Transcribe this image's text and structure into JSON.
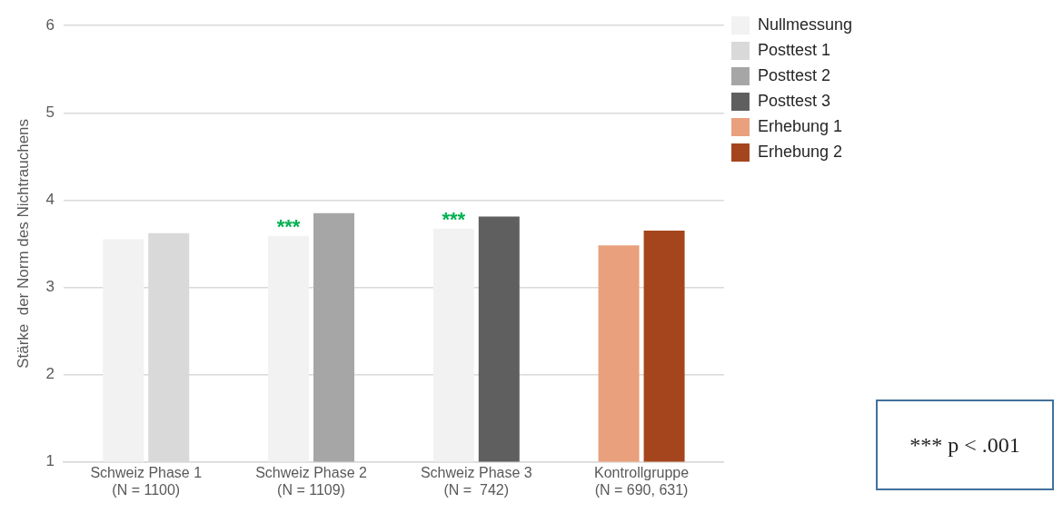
{
  "chart_data": {
    "type": "bar",
    "ylabel": "Stärke  der Norm des Nichtrauchens",
    "categories": [
      "Schweiz Phase 1\n(N = 1100)",
      "Schweiz Phase 2\n(N = 1109)",
      "Schweiz Phase 3\n(N =  742)",
      "Kontrollgruppe\n(N = 690, 631)"
    ],
    "series": [
      {
        "name": "Nullmessung",
        "color": "#f2f2f2",
        "values": [
          3.55,
          3.59,
          3.67,
          null
        ]
      },
      {
        "name": "Posttest 1",
        "color": "#d9d9d9",
        "values": [
          3.62,
          null,
          null,
          null
        ]
      },
      {
        "name": "Posttest 2",
        "color": "#a6a6a6",
        "values": [
          null,
          3.85,
          null,
          null
        ]
      },
      {
        "name": "Posttest 3",
        "color": "#5f5f5f",
        "values": [
          null,
          null,
          3.81,
          null
        ]
      },
      {
        "name": "Erhebung 1",
        "color": "#e9a07c",
        "values": [
          null,
          null,
          null,
          3.48
        ]
      },
      {
        "name": "Erhebung 2",
        "color": "#a5451d",
        "values": [
          null,
          null,
          null,
          3.65
        ]
      }
    ],
    "ylim": [
      1,
      6
    ],
    "yticks": [
      1,
      2,
      3,
      4,
      5,
      6
    ],
    "grid": "y",
    "legend": "top right",
    "annotations": [
      {
        "text": "***",
        "x": "Schweiz Phase 2\n(N = 1109)",
        "y": 3.59
      },
      {
        "text": "***",
        "x": "Schweiz Phase 3\n(N =  742)",
        "y": 3.67
      },
      "*** p < .001"
    ]
  }
}
